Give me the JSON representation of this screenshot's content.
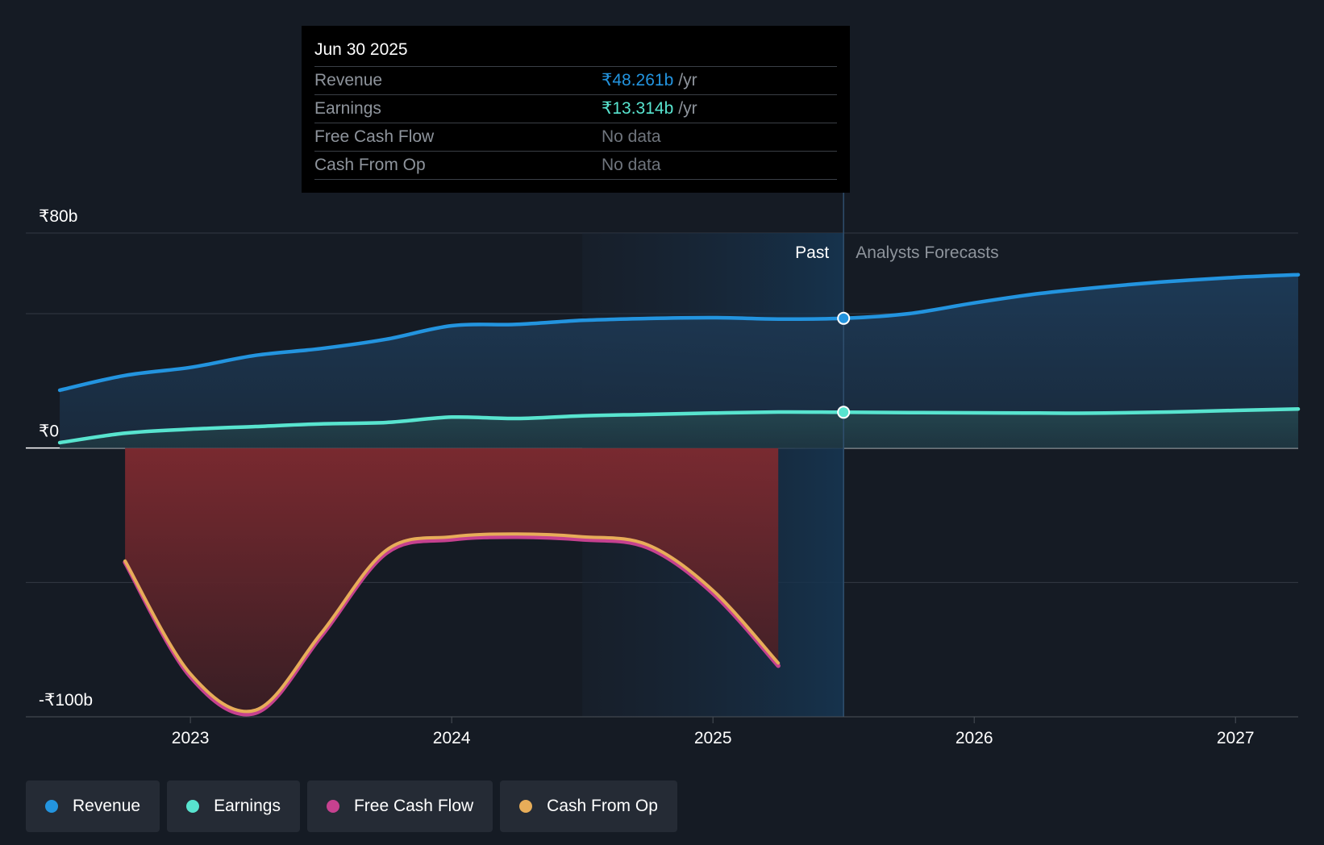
{
  "chart_data": {
    "type": "area",
    "y_axis": {
      "ylim": [
        -100,
        80
      ],
      "ticks": [
        {
          "value": 80,
          "label": "₹80b"
        },
        {
          "value": 0,
          "label": "₹0"
        },
        {
          "value": -100,
          "label": "-₹100b"
        }
      ],
      "gridlines": [
        80,
        50,
        0,
        -50,
        -100
      ]
    },
    "x_axis": {
      "xlim": [
        2022.37,
        2027.24
      ],
      "ticks": [
        {
          "value": 2023,
          "label": "2023"
        },
        {
          "value": 2024,
          "label": "2024"
        },
        {
          "value": 2025,
          "label": "2025"
        },
        {
          "value": 2026,
          "label": "2026"
        },
        {
          "value": 2027,
          "label": "2027"
        }
      ]
    },
    "divider": {
      "x": 2025.5,
      "past_label": "Past",
      "forecast_label": "Analysts Forecasts"
    },
    "highlight_start": 2024.5,
    "series": [
      {
        "name": "Revenue",
        "color": "#2394df",
        "fill": true,
        "points": [
          [
            2022.5,
            21.5
          ],
          [
            2022.75,
            27
          ],
          [
            2023,
            30
          ],
          [
            2023.25,
            34.5
          ],
          [
            2023.5,
            37
          ],
          [
            2023.75,
            40.5
          ],
          [
            2024,
            45.5
          ],
          [
            2024.25,
            46
          ],
          [
            2024.5,
            47.5
          ],
          [
            2024.75,
            48.2
          ],
          [
            2025,
            48.5
          ],
          [
            2025.25,
            48
          ],
          [
            2025.5,
            48.261
          ],
          [
            2025.75,
            50
          ],
          [
            2026,
            54
          ],
          [
            2026.25,
            57.5
          ],
          [
            2026.5,
            60
          ],
          [
            2026.75,
            62
          ],
          [
            2027,
            63.5
          ],
          [
            2027.24,
            64.5
          ]
        ]
      },
      {
        "name": "Earnings",
        "color": "#58e4cf",
        "fill": true,
        "points": [
          [
            2022.5,
            2
          ],
          [
            2022.75,
            5.5
          ],
          [
            2023,
            7
          ],
          [
            2023.25,
            8
          ],
          [
            2023.5,
            9
          ],
          [
            2023.75,
            9.5
          ],
          [
            2024,
            11.5
          ],
          [
            2024.25,
            11
          ],
          [
            2024.5,
            12
          ],
          [
            2024.75,
            12.5
          ],
          [
            2025,
            13
          ],
          [
            2025.25,
            13.4
          ],
          [
            2025.5,
            13.314
          ],
          [
            2025.75,
            13.2
          ],
          [
            2026,
            13.1
          ],
          [
            2026.25,
            13
          ],
          [
            2026.5,
            13
          ],
          [
            2026.75,
            13.4
          ],
          [
            2027,
            14
          ],
          [
            2027.24,
            14.5
          ]
        ]
      },
      {
        "name": "Free Cash Flow",
        "color": "#c6418f",
        "fill": false,
        "points": [
          [
            2022.75,
            -42.5
          ],
          [
            2023,
            -85
          ],
          [
            2023.25,
            -98.5
          ],
          [
            2023.5,
            -70
          ],
          [
            2023.75,
            -39
          ],
          [
            2024,
            -34
          ],
          [
            2024.25,
            -33
          ],
          [
            2024.5,
            -34
          ],
          [
            2024.75,
            -37
          ],
          [
            2025,
            -54
          ],
          [
            2025.25,
            -81
          ]
        ]
      },
      {
        "name": "Cash From Op",
        "color": "#e7ad59",
        "fill": true,
        "points": [
          [
            2022.75,
            -42
          ],
          [
            2023,
            -84
          ],
          [
            2023.25,
            -97.5
          ],
          [
            2023.5,
            -69
          ],
          [
            2023.75,
            -38
          ],
          [
            2024,
            -33
          ],
          [
            2024.25,
            -32
          ],
          [
            2024.5,
            -33
          ],
          [
            2024.75,
            -36
          ],
          [
            2025,
            -53
          ],
          [
            2025.25,
            -80
          ]
        ]
      }
    ],
    "markers": [
      {
        "series": "Revenue",
        "x": 2025.5,
        "y": 48.261
      },
      {
        "series": "Earnings",
        "x": 2025.5,
        "y": 13.314
      }
    ]
  },
  "tooltip": {
    "date": "Jun 30 2025",
    "unit": "/yr",
    "rows": [
      {
        "label": "Revenue",
        "value": "₹48.261b",
        "color": "#2394df",
        "unit": "/yr"
      },
      {
        "label": "Earnings",
        "value": "₹13.314b",
        "color": "#58e4cf",
        "unit": "/yr"
      },
      {
        "label": "Free Cash Flow",
        "value": "No data",
        "color": "#6f757d",
        "unit": ""
      },
      {
        "label": "Cash From Op",
        "value": "No data",
        "color": "#6f757d",
        "unit": ""
      }
    ]
  },
  "legend": [
    {
      "label": "Revenue",
      "color": "#2394df"
    },
    {
      "label": "Earnings",
      "color": "#58e4cf"
    },
    {
      "label": "Free Cash Flow",
      "color": "#c6418f"
    },
    {
      "label": "Cash From Op",
      "color": "#e7ad59"
    }
  ]
}
